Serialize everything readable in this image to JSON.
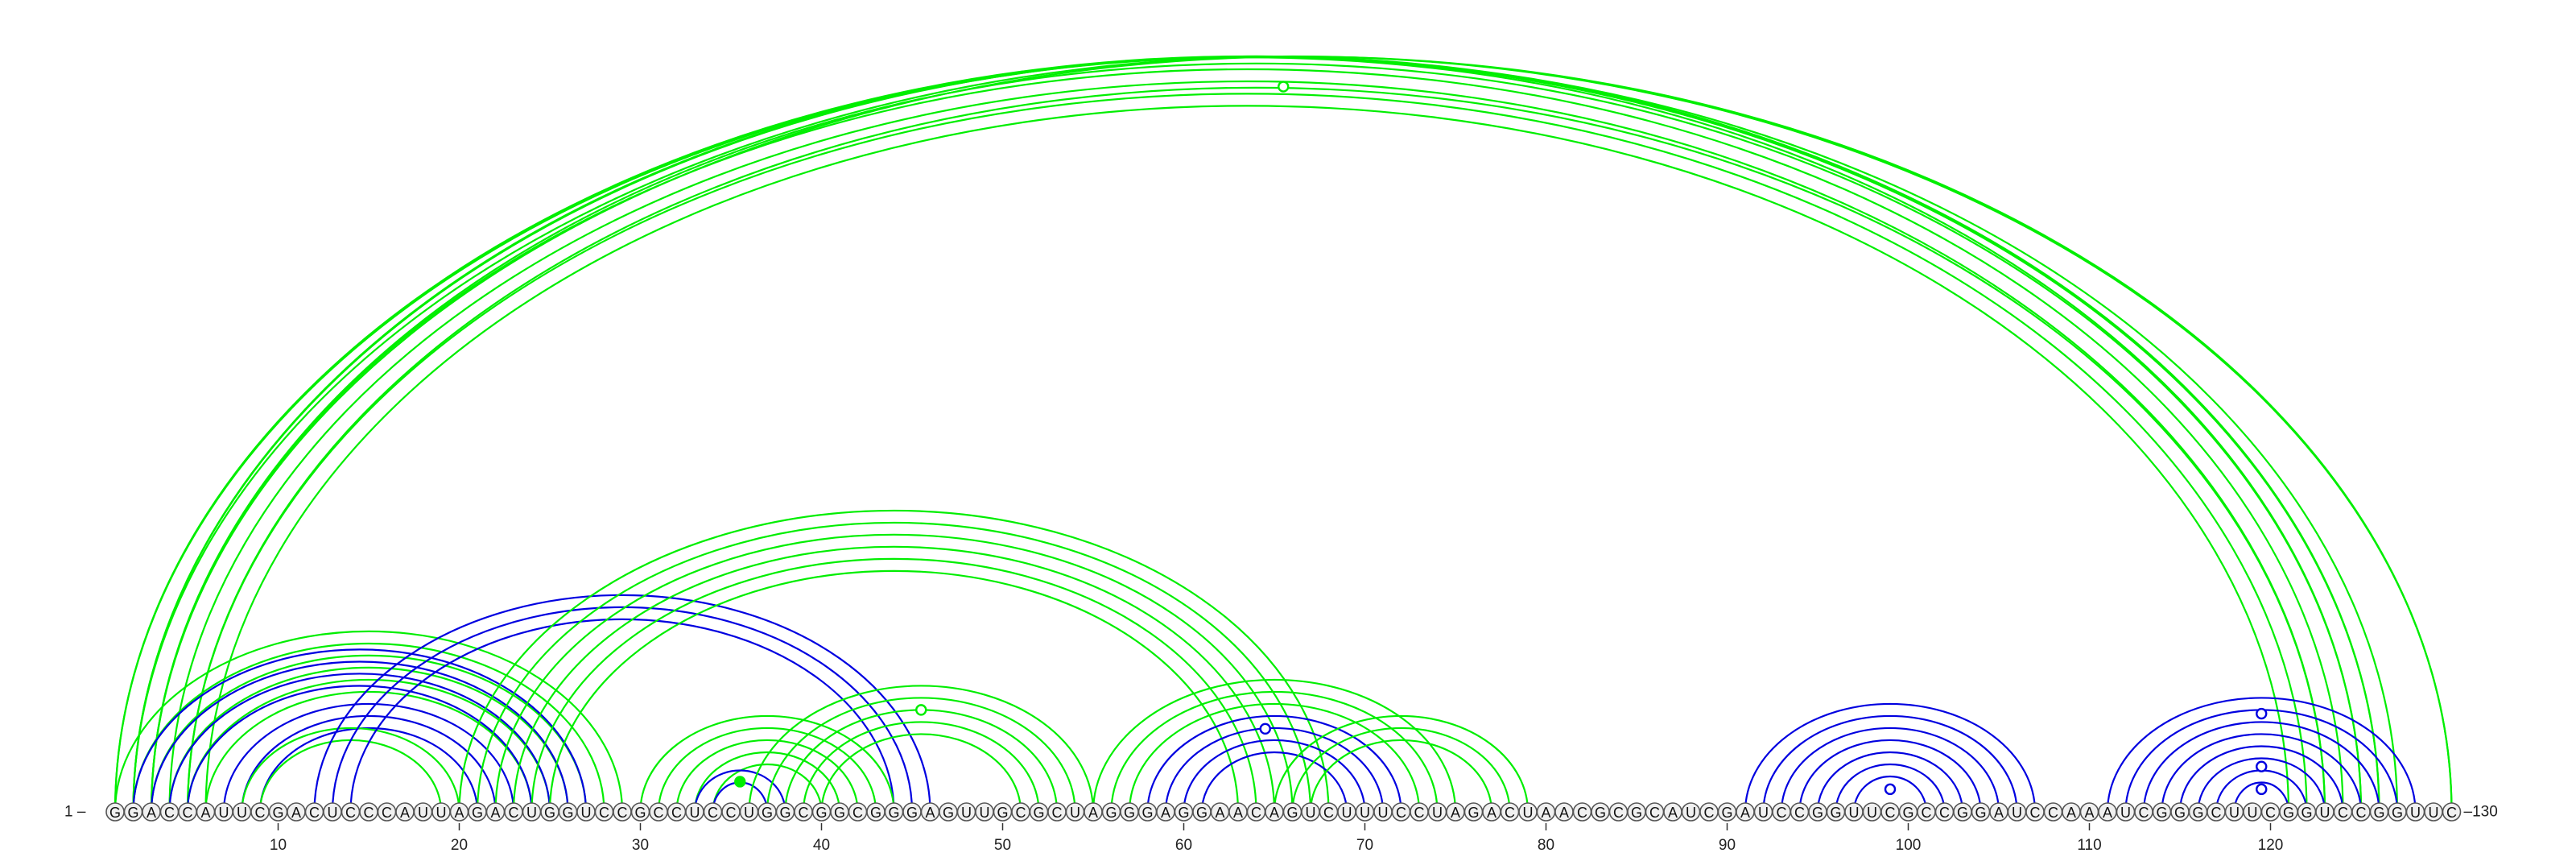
{
  "colors": {
    "green": "#00ee00",
    "blue": "#0000e0",
    "circle_fill": "#f0f0f0",
    "circle_stroke": "#555555"
  },
  "sequence": "GGACCAUUCGACUCCCAUUAGACUGGUCCGCCUCCUGGCGGCGGGAGUUGCGCUAGGGAGGAACAGUCUUUCCUAGACUAACGCGCAUCGAUCCGGUUCGCCGGAUCCAAAUCGGGCUUCGGUCCGGUUC",
  "labels": {
    "start": "1 –",
    "end": "–130"
  },
  "ticks": [
    10,
    20,
    30,
    40,
    50,
    60,
    70,
    80,
    90,
    100,
    110,
    120
  ],
  "arcs": [
    {
      "color": "green",
      "pairs": [
        [
          1,
          126
        ],
        [
          1,
          127
        ],
        [
          2,
          125
        ],
        [
          2,
          126
        ],
        [
          3,
          124
        ],
        [
          3,
          125
        ],
        [
          4,
          123
        ],
        [
          5,
          122
        ],
        [
          5,
          123
        ],
        [
          6,
          121
        ],
        [
          2,
          130
        ],
        [
          3,
          130
        ]
      ]
    },
    {
      "color": "green",
      "pairs": [
        [
          1,
          29
        ],
        [
          2,
          28
        ],
        [
          3,
          27
        ],
        [
          4,
          26
        ],
        [
          5,
          25
        ],
        [
          6,
          24
        ]
      ]
    },
    {
      "color": "blue",
      "pairs": [
        [
          2,
          27
        ],
        [
          3,
          26
        ],
        [
          4,
          25
        ],
        [
          5,
          24
        ],
        [
          7,
          23
        ],
        [
          8,
          22
        ],
        [
          9,
          21
        ]
      ]
    },
    {
      "color": "green",
      "pairs": [
        [
          8,
          20
        ],
        [
          9,
          19
        ]
      ]
    },
    {
      "color": "blue",
      "pairs": [
        [
          12,
          46
        ],
        [
          13,
          45
        ],
        [
          14,
          44
        ]
      ]
    },
    {
      "color": "green",
      "pairs": [
        [
          20,
          68
        ],
        [
          21,
          67
        ],
        [
          22,
          66
        ],
        [
          23,
          65
        ],
        [
          24,
          64
        ],
        [
          25,
          63
        ]
      ]
    },
    {
      "color": "green",
      "pairs": [
        [
          30,
          44
        ],
        [
          31,
          43
        ],
        [
          32,
          42
        ],
        [
          33,
          41
        ],
        [
          34,
          40
        ]
      ]
    },
    {
      "color": "blue",
      "pairs": [
        [
          33,
          38
        ],
        [
          34,
          37
        ]
      ]
    },
    {
      "color": "green",
      "pairs": [
        [
          36,
          55
        ],
        [
          37,
          54
        ],
        [
          38,
          53
        ],
        [
          39,
          52
        ],
        [
          40,
          51
        ]
      ]
    },
    {
      "color": "green",
      "pairs": [
        [
          55,
          75
        ],
        [
          56,
          74
        ],
        [
          57,
          73
        ]
      ]
    },
    {
      "color": "blue",
      "pairs": [
        [
          58,
          72
        ],
        [
          59,
          71
        ],
        [
          60,
          70
        ],
        [
          61,
          69
        ]
      ]
    },
    {
      "color": "green",
      "pairs": [
        [
          65,
          79
        ],
        [
          66,
          78
        ],
        [
          67,
          77
        ]
      ]
    },
    {
      "color": "blue",
      "pairs": [
        [
          91,
          107
        ],
        [
          92,
          106
        ],
        [
          93,
          105
        ],
        [
          94,
          104
        ],
        [
          95,
          103
        ],
        [
          96,
          102
        ],
        [
          97,
          101
        ]
      ]
    },
    {
      "color": "blue",
      "pairs": [
        [
          111,
          128
        ],
        [
          112,
          127
        ],
        [
          113,
          126
        ],
        [
          114,
          125
        ],
        [
          115,
          124
        ],
        [
          116,
          123
        ],
        [
          117,
          122
        ],
        [
          118,
          121
        ]
      ]
    }
  ],
  "markers": [
    {
      "color": "green",
      "filled": false,
      "x": 65.5,
      "y": 0.96
    },
    {
      "color": "green",
      "filled": false,
      "x": 45.5,
      "y": 0.135
    },
    {
      "color": "blue",
      "filled": false,
      "x": 64.5,
      "y": 0.11
    },
    {
      "color": "green",
      "filled": true,
      "x": 35.5,
      "y": 0.04
    },
    {
      "color": "blue",
      "filled": false,
      "x": 99,
      "y": 0.03
    },
    {
      "color": "blue",
      "filled": false,
      "x": 119.5,
      "y": 0.13
    },
    {
      "color": "blue",
      "filled": false,
      "x": 119.5,
      "y": 0.06
    },
    {
      "color": "blue",
      "filled": false,
      "x": 119.5,
      "y": 0.03
    }
  ]
}
